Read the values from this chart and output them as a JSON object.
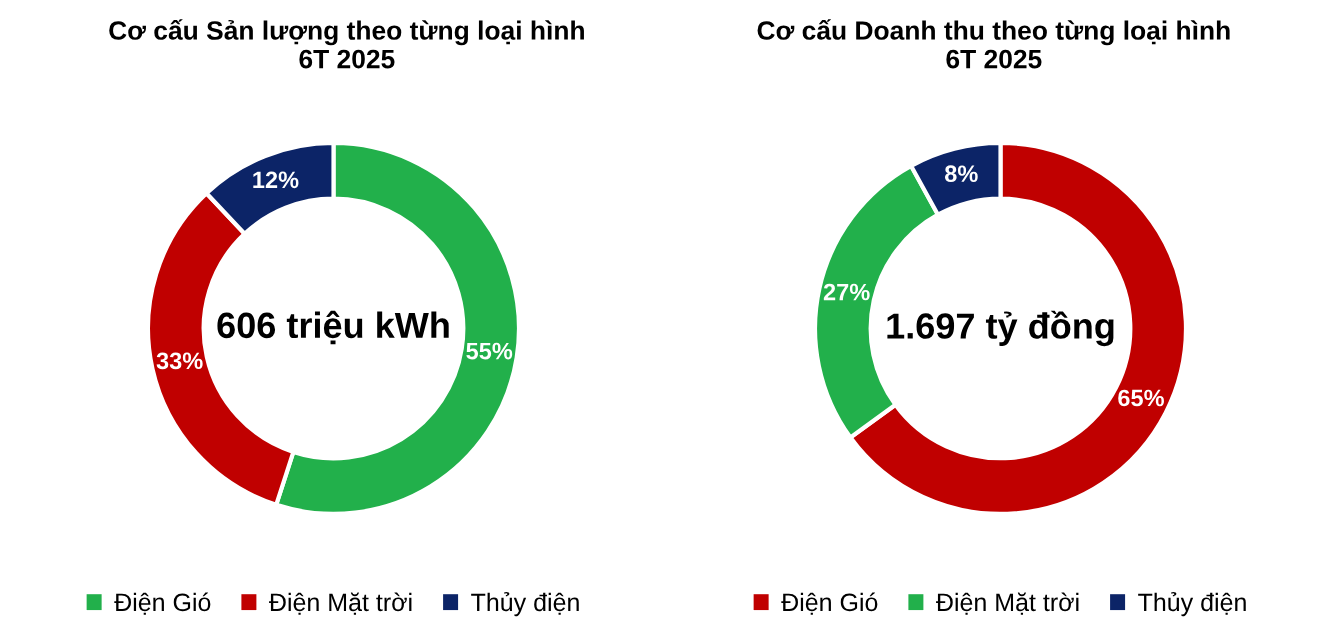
{
  "chart_data": [
    {
      "type": "donut",
      "title": "Cơ cấu Sản lượng theo từng loại hình",
      "subtitle": "6T 2025",
      "categories": [
        "Điện Gió",
        "Điện Mặt trời",
        "Thủy điện"
      ],
      "values": [
        55,
        33,
        12
      ],
      "value_labels": [
        "55%",
        "33%",
        "12%"
      ],
      "colors": [
        "#22b04b",
        "#c00000",
        "#0c2467"
      ],
      "annotations": [
        "606 triệu kWh"
      ],
      "legend": "bottom"
    },
    {
      "type": "donut",
      "title": "Cơ cấu Doanh thu theo từng loại hình",
      "subtitle": "6T 2025",
      "categories": [
        "Điện Gió",
        "Điện Mặt trời",
        "Thủy điện"
      ],
      "values": [
        65,
        27,
        8
      ],
      "value_labels": [
        "65%",
        "27%",
        "8%"
      ],
      "colors": [
        "#c00000",
        "#22b04b",
        "#0c2467"
      ],
      "annotations": [
        "1.697 tỷ đồng"
      ],
      "legend": "bottom"
    }
  ]
}
